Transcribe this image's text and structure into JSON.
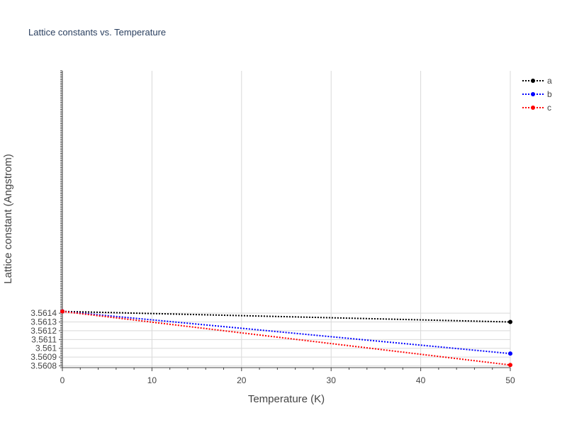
{
  "chart_data": {
    "type": "line",
    "title": "Lattice constants vs. Temperature",
    "xlabel": "Temperature (K)",
    "ylabel": "Lattice constant (Angstrom)",
    "x": [
      0,
      50
    ],
    "xlim": [
      0,
      50
    ],
    "ylim": [
      3.56078,
      3.56416
    ],
    "x_ticks": [
      0,
      10,
      20,
      30,
      40,
      50
    ],
    "x_tick_labels": [
      "0",
      "10",
      "20",
      "30",
      "40",
      "50"
    ],
    "y_ticks": [
      3.5608,
      3.5609,
      3.561,
      3.5611,
      3.5612,
      3.5613,
      3.5614
    ],
    "y_tick_labels": [
      "3.5608",
      "3.5609",
      "3.561",
      "3.5611",
      "3.5612",
      "3.5613",
      "3.5614"
    ],
    "grid": true,
    "legend_position": "top-right",
    "line_style": "dotted",
    "markers": true,
    "series": [
      {
        "name": "a",
        "color": "#000000",
        "values": [
          3.56142,
          3.5613
        ]
      },
      {
        "name": "b",
        "color": "#0000ff",
        "values": [
          3.56142,
          3.56094
        ]
      },
      {
        "name": "c",
        "color": "#ff0000",
        "values": [
          3.56142,
          3.56081
        ]
      }
    ]
  }
}
